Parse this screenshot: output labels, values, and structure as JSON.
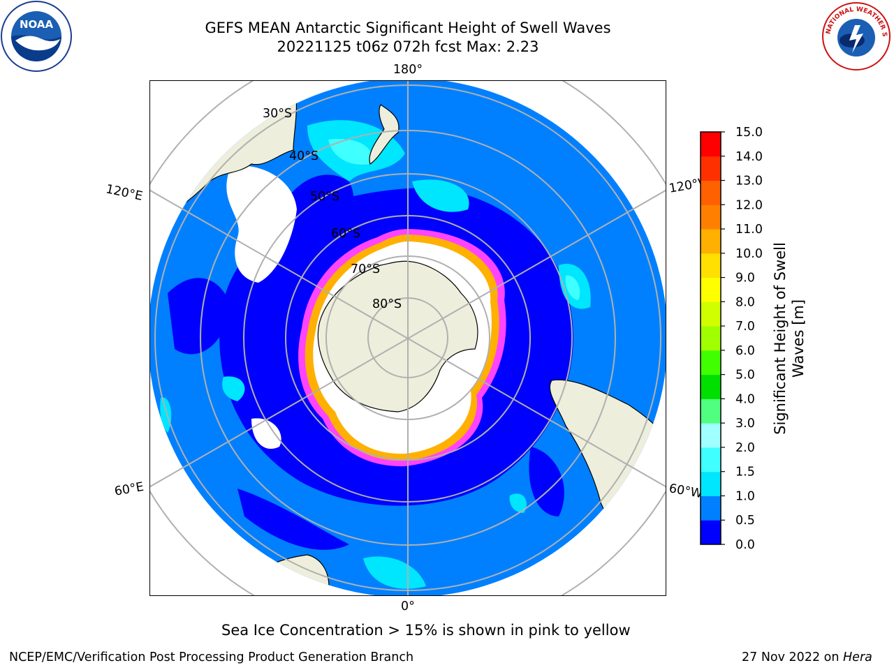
{
  "header": {
    "title_line1": "GEFS MEAN Antarctic Significant Height of Swell Waves",
    "title_line2": "20221125 t06z 072h fcst   Max: 2.23"
  },
  "map": {
    "projection": "south-polar-stereographic",
    "longitude_labels": {
      "top": "180°",
      "bottom": "0°",
      "upper_left": "120°E",
      "lower_left": "60°E",
      "upper_right": "120°W",
      "lower_right": "60°W"
    },
    "latitude_labels": [
      "30°S",
      "40°S",
      "50°S",
      "60°S",
      "70°S",
      "80°S"
    ],
    "colors": {
      "land": "#eeeedc",
      "sea_ice": "#ffffff",
      "swell_0_0_5": "#0000ff",
      "swell_0_5_1": "#0080ff",
      "swell_1_1_5": "#00e6ff",
      "swell_1_5_2": "#40ffff",
      "ice_edge": "#ff44ff",
      "ice_edge_inner": "#ffb000"
    }
  },
  "colorbar": {
    "label_line1": "Significant Height of Swell",
    "label_line2": "Waves [m]",
    "ticks": [
      "0.0",
      "0.5",
      "1.0",
      "1.5",
      "2.0",
      "3.0",
      "4.0",
      "5.0",
      "6.0",
      "7.0",
      "8.0",
      "9.0",
      "10.0",
      "11.0",
      "12.0",
      "13.0",
      "14.0",
      "15.0"
    ],
    "colors": [
      "#0000ff",
      "#0080ff",
      "#00e6ff",
      "#40ffff",
      "#a0ffff",
      "#50ff80",
      "#00e000",
      "#40ff00",
      "#a0ff00",
      "#d0ff00",
      "#ffff00",
      "#ffe000",
      "#ffb000",
      "#ff8000",
      "#ff6000",
      "#ff3000",
      "#ff0000"
    ]
  },
  "caption": "Sea Ice Concentration > 15% is shown in pink to yellow",
  "footer": {
    "left": "NCEP/EMC/Verification Post Processing Product Generation Branch",
    "right_prefix": "27 Nov 2022 on ",
    "right_machine": "Hera"
  },
  "logos": {
    "noaa_text": "NOAA",
    "nws_text": "NATIONAL WEATHER SERVICE"
  }
}
